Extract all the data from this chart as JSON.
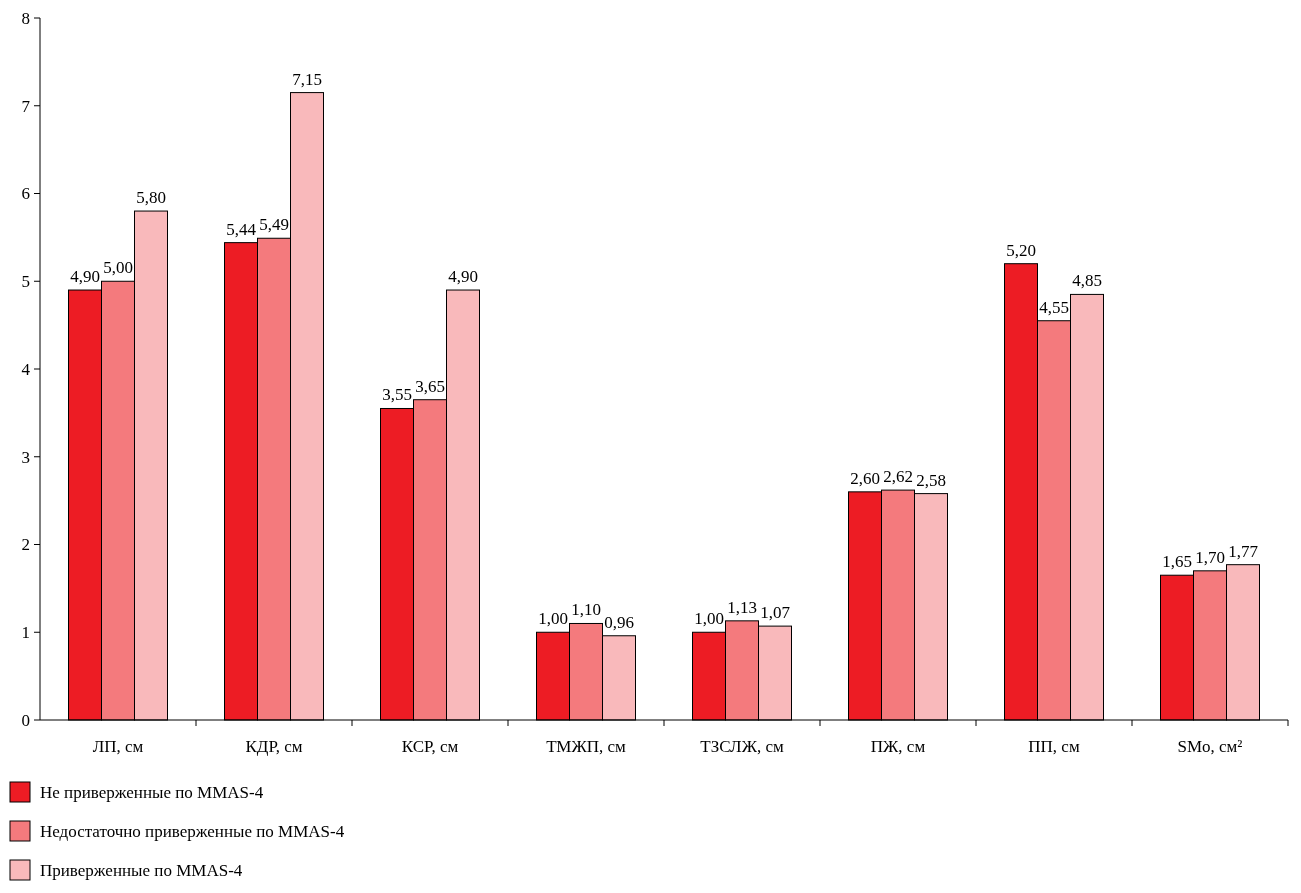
{
  "chart_data": {
    "type": "bar",
    "categories": [
      "ЛП, см",
      "КДР, см",
      "КСР, см",
      "ТМЖП, см",
      "ТЗСЛЖ, см",
      "ПЖ, см",
      "ПП, см",
      "SMo, см²"
    ],
    "series": [
      {
        "name": "Не приверженные по MMAS-4",
        "color": "#ed1c24",
        "values": [
          4.9,
          5.44,
          3.55,
          1.0,
          1.0,
          2.6,
          5.2,
          1.65
        ],
        "value_labels": [
          "4,90",
          "5,44",
          "3,55",
          "1,00",
          "1,00",
          "2,60",
          "5,20",
          "1,65"
        ]
      },
      {
        "name": "Недостаточно приверженные по MMAS-4",
        "color": "#f47a7d",
        "values": [
          5.0,
          5.49,
          3.65,
          1.1,
          1.13,
          2.62,
          4.55,
          1.7
        ],
        "value_labels": [
          "5,00",
          "5,49",
          "3,65",
          "1,10",
          "1,13",
          "2,62",
          "4,55",
          "1,70"
        ]
      },
      {
        "name": "Приверженные по MMAS-4",
        "color": "#f9b9bb",
        "values": [
          5.8,
          7.15,
          4.9,
          0.96,
          1.07,
          2.58,
          4.85,
          1.77
        ],
        "value_labels": [
          "5,80",
          "7,15",
          "4,90",
          "0,96",
          "1,07",
          "2,58",
          "4,85",
          "1,77"
        ]
      }
    ],
    "ylim": [
      0,
      8
    ],
    "yticks": [
      0,
      1,
      2,
      3,
      4,
      5,
      6,
      7,
      8
    ],
    "grid": false,
    "legend": "bottom left"
  }
}
